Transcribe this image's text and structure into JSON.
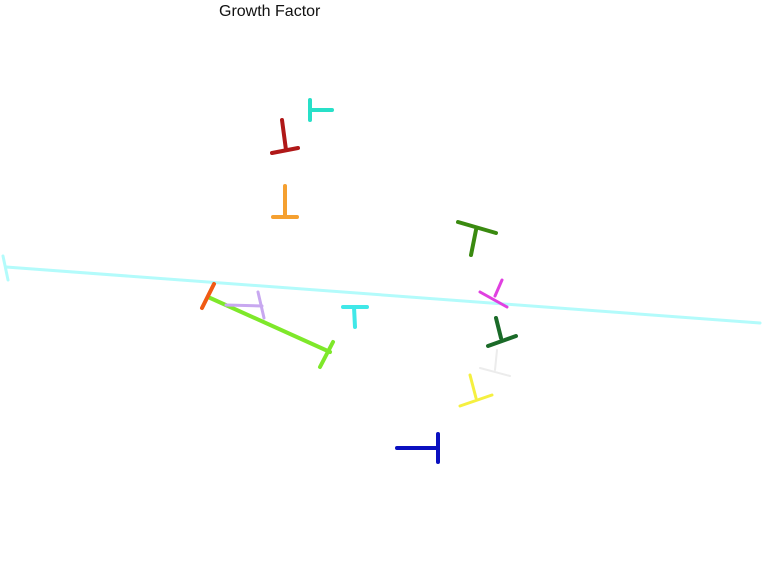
{
  "title": "Growth Factor",
  "glyph_colors": {
    "long_line": "#b3fbfb",
    "lime": "#7ee82a",
    "orange_red": "#f05a14",
    "lavender": "#c8a8f0",
    "cyan_small": "#40e8e8",
    "teal_top": "#28e0c8",
    "dark_red": "#b01818",
    "orange": "#f5a030",
    "green": "#3a8a10",
    "magenta": "#e040e0",
    "dark_green": "#1a6a28",
    "pale_gray": "#ececec",
    "yellow": "#f5f040",
    "blue": "#0a10c0"
  }
}
